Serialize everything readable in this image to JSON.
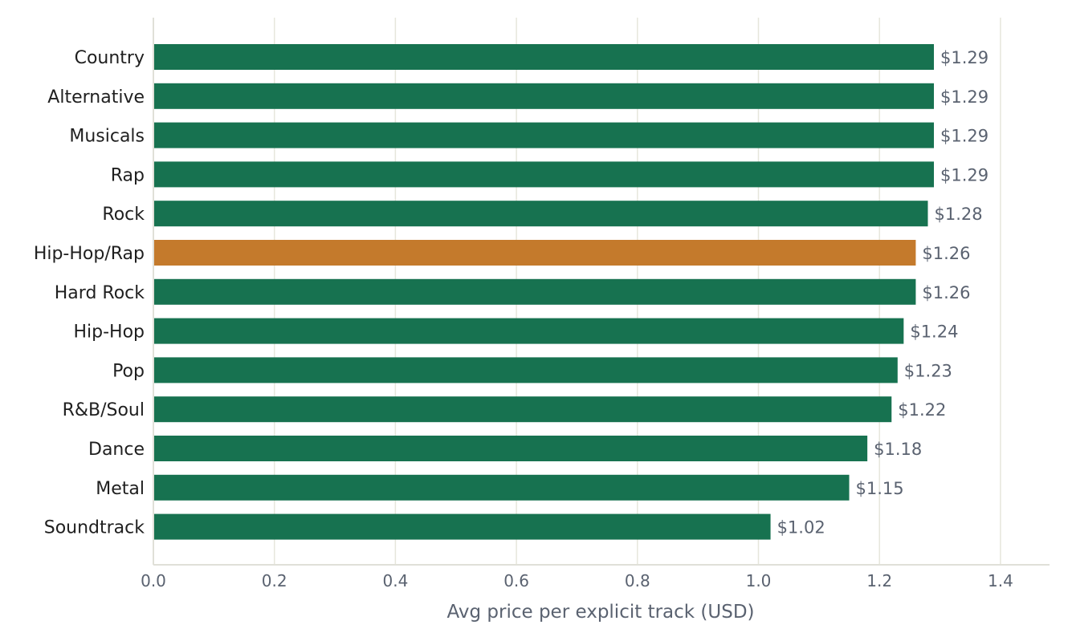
{
  "chart_data": {
    "type": "bar",
    "orientation": "horizontal",
    "categories": [
      "Country",
      "Alternative",
      "Musicals",
      "Rap",
      "Rock",
      "Hip-Hop/Rap",
      "Hard Rock",
      "Hip-Hop",
      "Pop",
      "R&B/Soul",
      "Dance",
      "Metal",
      "Soundtrack"
    ],
    "values": [
      1.29,
      1.29,
      1.29,
      1.29,
      1.28,
      1.26,
      1.26,
      1.24,
      1.23,
      1.22,
      1.18,
      1.15,
      1.02
    ],
    "value_labels": [
      "$1.29",
      "$1.29",
      "$1.29",
      "$1.29",
      "$1.28",
      "$1.26",
      "$1.26",
      "$1.24",
      "$1.23",
      "$1.22",
      "$1.18",
      "$1.15",
      "$1.02"
    ],
    "highlight_category": "Hip-Hop/Rap",
    "xlabel": "Avg price per explicit track (USD)",
    "ylabel": "",
    "xlim": [
      0,
      1.48
    ],
    "xticks": [
      "0.0",
      "0.2",
      "0.4",
      "0.6",
      "0.8",
      "1.0",
      "1.2",
      "1.4"
    ],
    "grid": "vertical",
    "colors": {
      "bar": "#177250",
      "highlight": "#c47a2c",
      "grid": "#e6e6dc",
      "axis": "#e0e0d8",
      "label": "#1f1f1f",
      "muted": "#5a6270"
    }
  }
}
